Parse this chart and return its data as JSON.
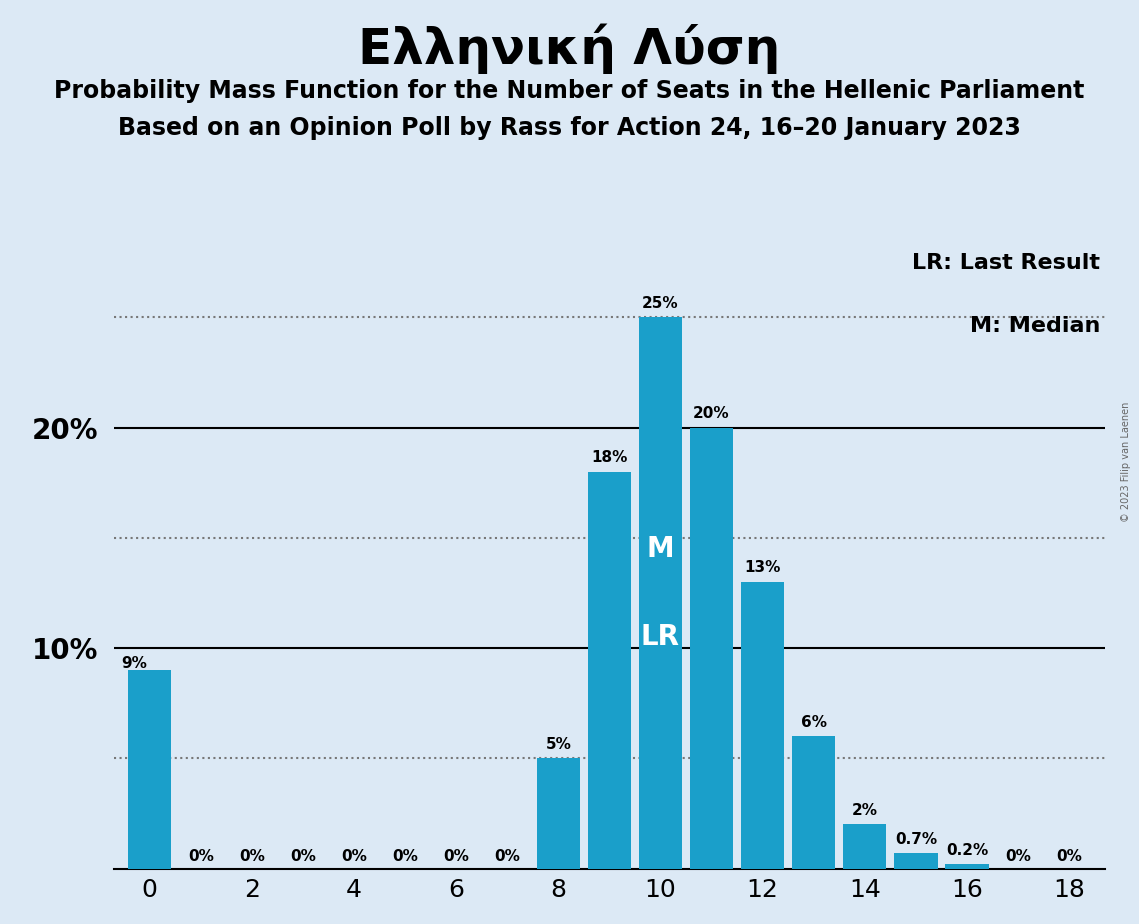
{
  "title": "Ελληνική Λύση",
  "subtitle1": "Probability Mass Function for the Number of Seats in the Hellenic Parliament",
  "subtitle2": "Based on an Opinion Poll by Rass for Action 24, 16–20 January 2023",
  "copyright": "© 2023 Filip van Laenen",
  "seats": [
    0,
    1,
    2,
    3,
    4,
    5,
    6,
    7,
    8,
    9,
    10,
    11,
    12,
    13,
    14,
    15,
    16,
    17,
    18
  ],
  "probabilities": [
    0.09,
    0.0,
    0.0,
    0.0,
    0.0,
    0.0,
    0.0,
    0.0,
    0.05,
    0.18,
    0.25,
    0.2,
    0.13,
    0.06,
    0.02,
    0.007,
    0.002,
    0.0,
    0.0
  ],
  "labels": [
    "9%",
    "0%",
    "0%",
    "0%",
    "0%",
    "0%",
    "0%",
    "0%",
    "5%",
    "18%",
    "25%",
    "20%",
    "13%",
    "6%",
    "2%",
    "0.7%",
    "0.2%",
    "0%",
    "0%"
  ],
  "bar_color": "#1a9fca",
  "background_color": "#dce9f5",
  "median": 10,
  "last_result": 10,
  "legend_lr": "LR: Last Result",
  "legend_m": "M: Median",
  "ylim": [
    0,
    0.285
  ],
  "dotted_line_color": "#777777",
  "dotted_lines": [
    0.05,
    0.15,
    0.25
  ],
  "solid_lines": [
    0.1,
    0.2
  ],
  "label_fontsize": 11,
  "ytick_fontsize": 20,
  "xtick_fontsize": 18,
  "legend_fontsize": 16,
  "title_fontsize": 36,
  "subtitle_fontsize": 17
}
